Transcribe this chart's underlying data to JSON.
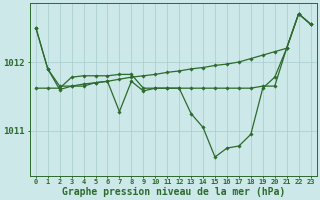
{
  "x": [
    0,
    1,
    2,
    3,
    4,
    5,
    6,
    7,
    8,
    9,
    10,
    11,
    12,
    13,
    14,
    15,
    16,
    17,
    18,
    19,
    20,
    21,
    22,
    23
  ],
  "line1_y": [
    1012.5,
    1011.9,
    1011.65,
    1011.65,
    1011.65,
    1011.7,
    1011.72,
    1011.75,
    1011.78,
    1011.8,
    1011.82,
    1011.85,
    1011.87,
    1011.9,
    1011.92,
    1011.95,
    1011.97,
    1012.0,
    1012.05,
    1012.1,
    1012.15,
    1012.2,
    1012.7,
    1012.55
  ],
  "line2_y": [
    1011.62,
    1011.62,
    1011.62,
    1011.78,
    1011.8,
    1011.8,
    1011.8,
    1011.82,
    1011.82,
    1011.62,
    1011.62,
    1011.62,
    1011.62,
    1011.62,
    1011.62,
    1011.62,
    1011.62,
    1011.62,
    1011.62,
    1011.65,
    1011.65,
    1012.2,
    1012.7,
    1012.55
  ],
  "line3_y": [
    1012.5,
    1011.9,
    1011.6,
    1011.65,
    1011.68,
    1011.7,
    1011.72,
    1011.28,
    1011.72,
    1011.58,
    1011.62,
    1011.62,
    1011.62,
    1011.25,
    1011.05,
    1010.62,
    1010.75,
    1010.78,
    1010.95,
    1011.62,
    1011.78,
    1012.2,
    1012.7,
    1012.55
  ],
  "ylim": [
    1010.35,
    1012.85
  ],
  "yticks": [
    1011,
    1012
  ],
  "xtick_labels": [
    "0",
    "1",
    "2",
    "3",
    "4",
    "5",
    "6",
    "7",
    "8",
    "9",
    "10",
    "11",
    "12",
    "13",
    "14",
    "15",
    "16",
    "17",
    "18",
    "19",
    "20",
    "21",
    "22",
    "23"
  ],
  "line_color": "#2d6a2d",
  "bg_color": "#cce8e8",
  "grid_color": "#a8cccc",
  "xlabel": "Graphe pression niveau de la mer (hPa)",
  "xlabel_fontsize": 7.0,
  "marker": "D",
  "marker_size": 1.8,
  "linewidth": 0.9
}
